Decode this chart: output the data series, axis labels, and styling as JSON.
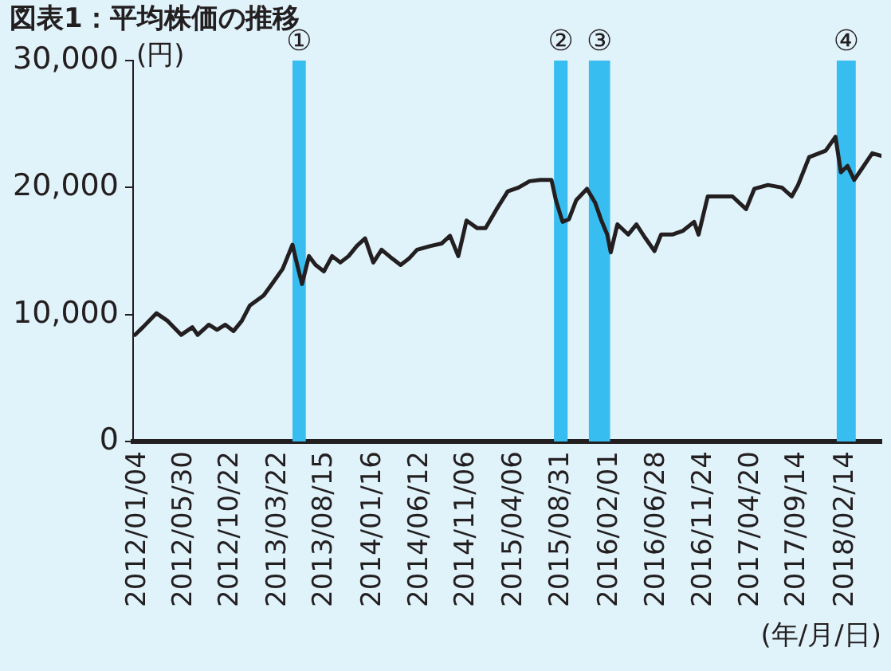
{
  "chart_data": {
    "type": "line",
    "title": "図表1：平均株価の推移",
    "ylabel": "(円)",
    "xlabel": "(年/月/日)",
    "x": [
      "2012-01-10",
      "2012-02-04",
      "2012-03-18",
      "2012-04-22",
      "2012-06-04",
      "2012-07-09",
      "2012-07-26",
      "2012-08-30",
      "2012-09-25",
      "2012-10-21",
      "2012-11-16",
      "2012-12-12",
      "2013-01-06",
      "2013-02-19",
      "2013-03-17",
      "2013-04-20",
      "2013-05-21",
      "2013-06-03",
      "2013-06-20",
      "2013-07-12",
      "2013-08-02",
      "2013-08-28",
      "2013-09-23",
      "2013-10-19",
      "2013-11-14",
      "2013-12-10",
      "2014-01-05",
      "2014-01-31",
      "2014-02-26",
      "2014-04-01",
      "2014-04-27",
      "2014-05-23",
      "2014-06-18",
      "2014-07-31",
      "2014-09-04",
      "2014-09-30",
      "2014-10-26",
      "2014-11-21",
      "2014-12-25",
      "2015-01-20",
      "2015-02-24",
      "2015-03-31",
      "2015-05-04",
      "2015-06-08",
      "2015-07-12",
      "2015-08-16",
      "2015-08-30",
      "2015-09-20",
      "2015-10-10",
      "2015-11-02",
      "2015-12-06",
      "2016-01-01",
      "2016-01-19",
      "2016-02-08",
      "2016-02-19",
      "2016-03-11",
      "2016-04-14",
      "2016-05-10",
      "2016-06-05",
      "2016-07-06",
      "2016-07-27",
      "2016-08-31",
      "2016-10-04",
      "2016-11-08",
      "2016-11-22",
      "2016-12-21",
      "2017-02-02",
      "2017-03-09",
      "2017-04-21",
      "2017-05-17",
      "2017-06-29",
      "2017-08-12",
      "2017-09-12",
      "2017-10-02",
      "2017-11-06",
      "2017-12-28",
      "2018-01-28",
      "2018-02-14",
      "2018-03-07",
      "2018-03-28",
      "2018-04-19",
      "2018-05-24",
      "2018-06-22"
    ],
    "series": [
      {
        "color": "#231f20",
        "values": [
          8400,
          9000,
          10100,
          9500,
          8400,
          9000,
          8400,
          9200,
          8800,
          9200,
          8700,
          9500,
          10700,
          11500,
          12400,
          13600,
          15500,
          14100,
          12400,
          14600,
          13900,
          13400,
          14600,
          14100,
          14600,
          15400,
          16000,
          14100,
          15100,
          14400,
          13900,
          14400,
          15100,
          15400,
          15600,
          16200,
          14600,
          17400,
          16800,
          16800,
          18300,
          19700,
          20000,
          20500,
          20600,
          20600,
          19000,
          17300,
          17500,
          19000,
          19900,
          18800,
          17500,
          16300,
          14900,
          17100,
          16300,
          17100,
          16100,
          15000,
          16300,
          16300,
          16600,
          17300,
          16300,
          19300,
          19300,
          19300,
          18300,
          19900,
          20200,
          20000,
          19300,
          20200,
          22400,
          22900,
          24000,
          21200,
          21700,
          20600,
          21400,
          22700,
          22500
        ]
      }
    ],
    "xlim": [
      "2012-01-04",
      "2018-06-22"
    ],
    "xticks": [
      {
        "value": "2012-01-04",
        "label": "2012/01/04"
      },
      {
        "value": "2012-05-30",
        "label": "2012/05/30"
      },
      {
        "value": "2012-10-22",
        "label": "2012/10/22"
      },
      {
        "value": "2013-03-22",
        "label": "2013/03/22"
      },
      {
        "value": "2013-08-15",
        "label": "2013/08/15"
      },
      {
        "value": "2014-01-16",
        "label": "2014/01/16"
      },
      {
        "value": "2014-06-12",
        "label": "2014/06/12"
      },
      {
        "value": "2014-11-06",
        "label": "2014/11/06"
      },
      {
        "value": "2015-04-06",
        "label": "2015/04/06"
      },
      {
        "value": "2015-08-31",
        "label": "2015/08/31"
      },
      {
        "value": "2016-02-01",
        "label": "2016/02/01"
      },
      {
        "value": "2016-06-28",
        "label": "2016/06/28"
      },
      {
        "value": "2016-11-24",
        "label": "2016/11/24"
      },
      {
        "value": "2017-04-20",
        "label": "2017/04/20"
      },
      {
        "value": "2017-09-14",
        "label": "2017/09/14"
      },
      {
        "value": "2018-02-14",
        "label": "2018/02/14"
      }
    ],
    "ylim": [
      0,
      30000
    ],
    "yticks": [
      {
        "value": 0,
        "label": "0"
      },
      {
        "value": 10000,
        "label": "10,000"
      },
      {
        "value": 20000,
        "label": "20,000"
      },
      {
        "value": 30000,
        "label": "30,000"
      }
    ],
    "bands": [
      {
        "axis": "x",
        "from": "2013-05-21",
        "to": "2013-07-02",
        "label": "①",
        "color": "#38bdf0"
      },
      {
        "axis": "x",
        "from": "2015-08-24",
        "to": "2015-10-06",
        "label": "②",
        "color": "#38bdf0"
      },
      {
        "axis": "x",
        "from": "2015-12-12",
        "to": "2016-02-17",
        "label": "③",
        "color": "#38bdf0"
      },
      {
        "axis": "x",
        "from": "2018-02-01",
        "to": "2018-04-02",
        "label": "④",
        "color": "#38bdf0"
      }
    ],
    "grid": false,
    "legend": false,
    "marker": "none",
    "line_style": "solid"
  }
}
